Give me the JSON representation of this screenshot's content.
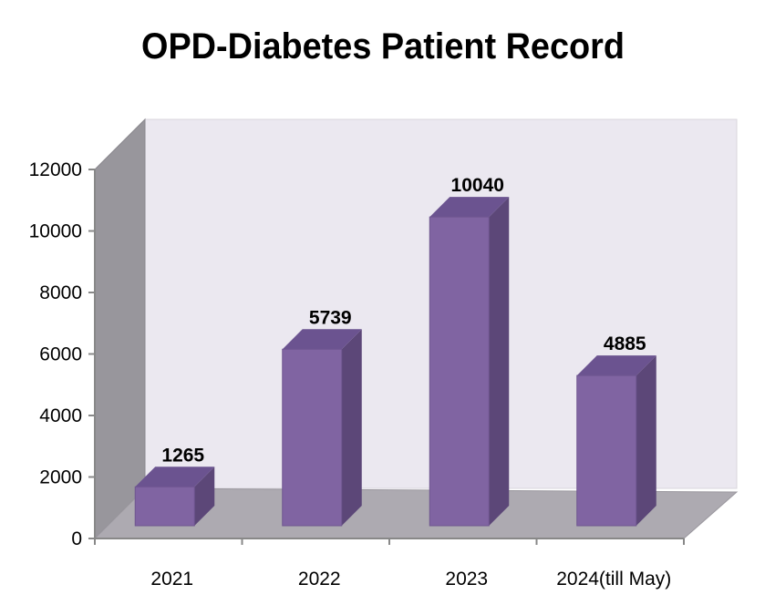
{
  "chart_data": {
    "type": "bar",
    "title": "OPD-Diabetes Patient Record",
    "categories": [
      "2021",
      "2022",
      "2023",
      "2024(till May)"
    ],
    "values": [
      1265,
      5739,
      10040,
      4885
    ],
    "data_labels": [
      "1265",
      "5739",
      "10040",
      "4885"
    ],
    "xlabel": "",
    "ylabel": "",
    "ylim": [
      0,
      12000
    ],
    "yticks": [
      0,
      2000,
      4000,
      6000,
      8000,
      10000,
      12000
    ],
    "grid": false,
    "legend": "none",
    "style": "3d-column",
    "colors": {
      "bar_front": "#8064A2",
      "bar_side": "#5C4778",
      "bar_top": "#6B5390",
      "back_wall": "#EBE8F0",
      "side_wall": "#98969C",
      "floor": "#ADAAB1"
    }
  }
}
